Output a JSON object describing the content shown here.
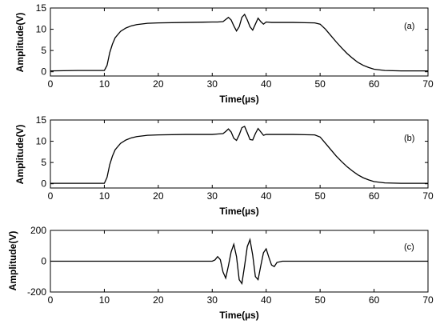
{
  "chart_data": [
    {
      "type": "line",
      "panel_label": "(a)",
      "xlabel": "Time(µs)",
      "ylabel": "Amplitude(V)",
      "xlim": [
        0,
        70
      ],
      "ylim": [
        -1,
        15
      ],
      "xticks": [
        "0",
        "10",
        "20",
        "30",
        "40",
        "50",
        "60",
        "70"
      ],
      "yticks": [
        "0",
        "5",
        "10",
        "15"
      ],
      "grid": false,
      "color": "#000000",
      "series": [
        {
          "x": [
            0,
            5,
            10,
            10.5,
            11,
            11.5,
            12,
            13,
            14,
            15,
            16,
            18,
            20,
            25,
            30,
            31,
            32,
            32.5,
            33,
            33.5,
            34,
            34.5,
            35,
            35.5,
            36,
            36.5,
            37,
            37.5,
            38,
            38.5,
            39,
            39.5,
            40,
            41,
            45,
            49,
            50,
            51,
            52,
            53,
            54,
            55,
            56,
            57,
            58,
            59,
            60,
            62,
            65,
            70
          ],
          "y": [
            0.2,
            0.3,
            0.3,
            1.5,
            4.5,
            6.5,
            8,
            9.5,
            10.3,
            10.8,
            11.1,
            11.4,
            11.5,
            11.6,
            11.7,
            11.7,
            11.8,
            12.3,
            12.8,
            12.2,
            10.8,
            9.6,
            10.6,
            12.8,
            13.5,
            12.2,
            10.6,
            9.8,
            11.2,
            12.6,
            11.8,
            11.2,
            11.7,
            11.6,
            11.6,
            11.5,
            11.2,
            10,
            8.5,
            7,
            5.6,
            4.3,
            3.2,
            2.2,
            1.5,
            1,
            0.6,
            0.3,
            0.2,
            0.2
          ]
        }
      ]
    },
    {
      "type": "line",
      "panel_label": "(b)",
      "xlabel": "Time(µs)",
      "ylabel": "Amplitude(V)",
      "xlim": [
        0,
        70
      ],
      "ylim": [
        -1,
        15
      ],
      "xticks": [
        "0",
        "10",
        "20",
        "30",
        "40",
        "50",
        "60",
        "70"
      ],
      "yticks": [
        "0",
        "5",
        "10",
        "15"
      ],
      "grid": false,
      "color": "#000000",
      "series": [
        {
          "x": [
            0,
            5,
            10,
            10.5,
            11,
            11.5,
            12,
            13,
            14,
            15,
            16,
            18,
            20,
            25,
            30,
            31,
            32,
            32.5,
            33,
            33.5,
            34,
            34.5,
            35,
            35.5,
            36,
            36.5,
            37,
            37.5,
            38,
            38.5,
            39,
            39.5,
            40,
            41,
            45,
            49,
            50,
            51,
            52,
            53,
            54,
            55,
            56,
            57,
            58,
            59,
            60,
            62,
            65,
            70
          ],
          "y": [
            0.1,
            0.1,
            0.1,
            1.5,
            4.5,
            6.5,
            8,
            9.5,
            10.3,
            10.8,
            11.1,
            11.4,
            11.5,
            11.6,
            11.6,
            11.7,
            11.8,
            12.3,
            12.9,
            12.2,
            10.7,
            10.2,
            11.5,
            13.2,
            13.5,
            12,
            10.4,
            10.3,
            11.8,
            13,
            12.2,
            11.4,
            11.6,
            11.6,
            11.6,
            11.5,
            11,
            9.5,
            8,
            6.5,
            5.2,
            4,
            3,
            2.1,
            1.4,
            0.9,
            0.5,
            0.2,
            0.1,
            0.1
          ]
        }
      ]
    },
    {
      "type": "line",
      "panel_label": "(c)",
      "xlabel": "Time(µs)",
      "ylabel": "Amplitude(V)",
      "xlim": [
        0,
        70
      ],
      "ylim": [
        -200,
        200
      ],
      "xticks": [
        "0",
        "10",
        "20",
        "30",
        "40",
        "50",
        "60",
        "70"
      ],
      "yticks": [
        "-200",
        "0",
        "200"
      ],
      "grid": false,
      "color": "#000000",
      "series": [
        {
          "x": [
            0,
            28,
            30,
            30.5,
            31,
            31.5,
            32,
            32.5,
            33,
            33.5,
            34,
            34.5,
            35,
            35.5,
            36,
            36.5,
            37,
            37.5,
            38,
            38.5,
            39,
            39.5,
            40,
            40.5,
            41,
            41.5,
            42,
            43,
            45,
            70
          ],
          "y": [
            0,
            0,
            0,
            8,
            30,
            10,
            -70,
            -110,
            -30,
            60,
            110,
            30,
            -120,
            -145,
            -30,
            95,
            140,
            40,
            -100,
            -120,
            -30,
            55,
            80,
            25,
            -25,
            -35,
            -8,
            0,
            0,
            0
          ]
        }
      ]
    }
  ]
}
